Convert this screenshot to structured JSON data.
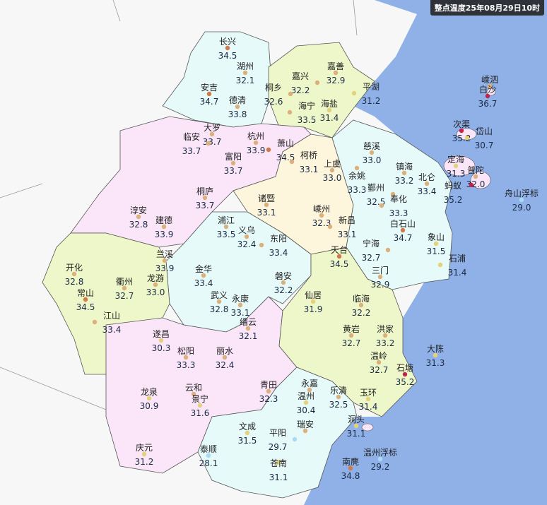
{
  "title": "整点温度25年08月29日10时",
  "colors": {
    "sea": "#8fb1e8",
    "outside_land": "#f7f7f7",
    "region_cyan": "#e6fafa",
    "region_pink": "#fbe6f9",
    "region_cream": "#fdf5dc",
    "region_green": "#eef7c9",
    "dot_below_30": "#a9dcf2",
    "dot_30_32": "#e3d27a",
    "dot_32_34": "#dcb07a",
    "dot_34_35": "#d07a4a",
    "dot_above_35": "#c0244a"
  },
  "stations": [
    {
      "name": "长兴",
      "value": "34.5"
    },
    {
      "name": "湖州",
      "value": "32.1"
    },
    {
      "name": "安吉",
      "value": "34.7"
    },
    {
      "name": "德清",
      "value": "33.8"
    },
    {
      "name": "嘉善",
      "value": "32.9"
    },
    {
      "name": "嘉兴",
      "value": "32.2"
    },
    {
      "name": "桐乡",
      "value": "32.6"
    },
    {
      "name": "平湖",
      "value": "31.2"
    },
    {
      "name": "海宁",
      "value": "33.5"
    },
    {
      "name": "海盐",
      "value": "31.4"
    },
    {
      "name": "大罗",
      "value": "33.7"
    },
    {
      "name": "临安",
      "value": "33.7"
    },
    {
      "name": "杭州",
      "value": "33.9"
    },
    {
      "name": "萧山",
      "value": "34.5"
    },
    {
      "name": "富阳",
      "value": "33.7"
    },
    {
      "name": "柯桥",
      "value": "33.1"
    },
    {
      "name": "慈溪",
      "value": "33.0"
    },
    {
      "name": "上虞",
      "value": "33.0"
    },
    {
      "name": "余姚",
      "value": "33.3"
    },
    {
      "name": "镇海",
      "value": "33.2"
    },
    {
      "name": "北仑",
      "value": "33.4"
    },
    {
      "name": "鄞州",
      "value": "32.5"
    },
    {
      "name": "奉化",
      "value": "33.3"
    },
    {
      "name": "桐庐",
      "value": "33.7"
    },
    {
      "name": "诸暨",
      "value": "33.1"
    },
    {
      "name": "淳安",
      "value": "32.8"
    },
    {
      "name": "建德",
      "value": "33.9"
    },
    {
      "name": "嵊州",
      "value": "32.3"
    },
    {
      "name": "新昌",
      "value": "33.1"
    },
    {
      "name": "白石山",
      "value": "34.7"
    },
    {
      "name": "浦江",
      "value": "33.5"
    },
    {
      "name": "义乌",
      "value": "32.4"
    },
    {
      "name": "东阳",
      "value": "33.4"
    },
    {
      "name": "宁海",
      "value": "32.7"
    },
    {
      "name": "象山",
      "value": "31.5"
    },
    {
      "name": "石浦",
      "value": "31.4"
    },
    {
      "name": "开化",
      "value": "32.8"
    },
    {
      "name": "兰溪",
      "value": "33.9"
    },
    {
      "name": "金华",
      "value": "33.4"
    },
    {
      "name": "龙游",
      "value": "33.0"
    },
    {
      "name": "衢州",
      "value": "32.7"
    },
    {
      "name": "天台",
      "value": "34.5"
    },
    {
      "name": "三门",
      "value": "32.9"
    },
    {
      "name": "磐安",
      "value": "32.2"
    },
    {
      "name": "常山",
      "value": "34.5"
    },
    {
      "name": "武义",
      "value": "32.8"
    },
    {
      "name": "永康",
      "value": "33.1"
    },
    {
      "name": "仙居",
      "value": "31.9"
    },
    {
      "name": "临海",
      "value": "32.2"
    },
    {
      "name": "江山",
      "value": "33.4"
    },
    {
      "name": "缙云",
      "value": "32.1"
    },
    {
      "name": "遂昌",
      "value": "30.3"
    },
    {
      "name": "黄岩",
      "value": "32.7"
    },
    {
      "name": "洪家",
      "value": "33.2"
    },
    {
      "name": "松阳",
      "value": "33.3"
    },
    {
      "name": "丽水",
      "value": "32.4"
    },
    {
      "name": "温岭",
      "value": "32.7"
    },
    {
      "name": "大陈",
      "value": "31.3"
    },
    {
      "name": "石塘",
      "value": "35.2"
    },
    {
      "name": "青田",
      "value": "32.3"
    },
    {
      "name": "永嘉",
      "value": ""
    },
    {
      "name": "温州",
      "value": "30.4"
    },
    {
      "name": "乐清",
      "value": "32.5"
    },
    {
      "name": "玉环",
      "value": "31.4"
    },
    {
      "name": "龙泉",
      "value": "30.9"
    },
    {
      "name": "云和",
      "value": ""
    },
    {
      "name": "景宁",
      "value": "31.6"
    },
    {
      "name": "瑞安",
      "value": ""
    },
    {
      "name": "平阳",
      "value": "29.7"
    },
    {
      "name": "洞头",
      "value": "31.1"
    },
    {
      "name": "文成",
      "value": "31.5"
    },
    {
      "name": "庆元",
      "value": "31.2"
    },
    {
      "name": "泰顺",
      "value": "28.1"
    },
    {
      "name": "苍南",
      "value": "31.1"
    },
    {
      "name": "温州浮标",
      "value": "29.2"
    },
    {
      "name": "南麂",
      "value": "34.8"
    },
    {
      "name": "嵊泗",
      "value": ""
    },
    {
      "name": "白沙",
      "value": "36.7"
    },
    {
      "name": "次渠",
      "value": "35.2"
    },
    {
      "name": "岱山",
      "value": "30.7"
    },
    {
      "name": "定海",
      "value": "31.3"
    },
    {
      "name": "普陀",
      "value": "32.0"
    },
    {
      "name": "蚂蚁",
      "value": "35.2"
    },
    {
      "name": "舟山浮标",
      "value": "29.0"
    }
  ]
}
